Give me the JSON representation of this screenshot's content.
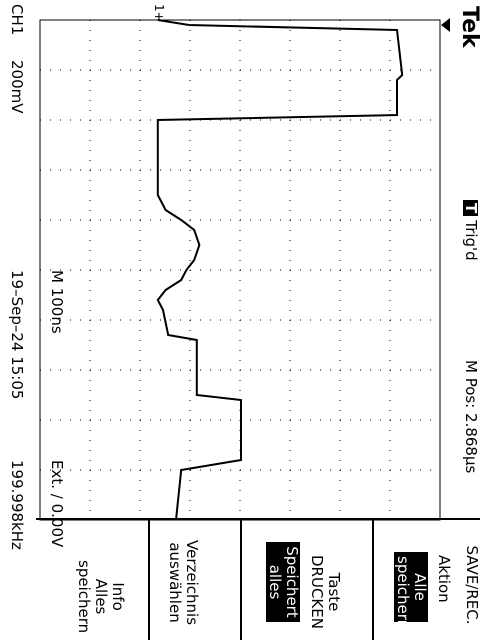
{
  "header": {
    "brand": "Tek",
    "trigger_state": "Trig'd",
    "trigger_badge": "T"
  },
  "channel": {
    "name": "CH1",
    "scale": "200mV",
    "marker": "1+"
  },
  "timebase": {
    "main": "M 100ns",
    "position": "M Pos: 2.868µs"
  },
  "trigger": {
    "readout": "Ext. ∕ 0.00V",
    "frequency": "199.998kHz"
  },
  "timestamp": "19–Sep–24 15:05",
  "menu": {
    "title": "SAVE/REC.",
    "items": [
      {
        "lines": [
          "Aktion"
        ],
        "value": [
          "Alle",
          "speichern"
        ]
      },
      {
        "lines": [
          "Taste",
          "DRUCKEN"
        ],
        "value": [
          "Speichert",
          "alles"
        ]
      },
      {
        "lines": [
          "Verzeichnis",
          "auswählen"
        ]
      },
      {
        "lines": [
          "Info",
          "Alles",
          "speichern"
        ]
      }
    ]
  },
  "waveform": {
    "x_divisions": 10,
    "y_divisions": 8,
    "trace": [
      [
        0.0,
        0.1
      ],
      [
        0.1,
        0.12
      ],
      [
        0.12,
        0.35
      ],
      [
        0.24,
        0.35
      ],
      [
        0.25,
        0.18
      ],
      [
        0.36,
        0.18
      ],
      [
        0.37,
        0.07
      ],
      [
        0.42,
        0.05
      ],
      [
        0.44,
        0.03
      ],
      [
        0.46,
        0.06
      ],
      [
        0.48,
        0.12
      ],
      [
        0.5,
        0.14
      ],
      [
        0.52,
        0.17
      ],
      [
        0.55,
        0.19
      ],
      [
        0.58,
        0.17
      ],
      [
        0.6,
        0.12
      ],
      [
        0.62,
        0.06
      ],
      [
        0.65,
        0.03
      ],
      [
        0.68,
        0.03
      ],
      [
        0.7,
        0.03
      ],
      [
        0.72,
        0.03
      ],
      [
        0.8,
        0.03
      ],
      [
        0.81,
        0.95
      ],
      [
        0.88,
        0.95
      ],
      [
        0.89,
        0.97
      ],
      [
        0.98,
        0.95
      ],
      [
        0.99,
        0.15
      ],
      [
        1.0,
        0.03
      ]
    ]
  }
}
